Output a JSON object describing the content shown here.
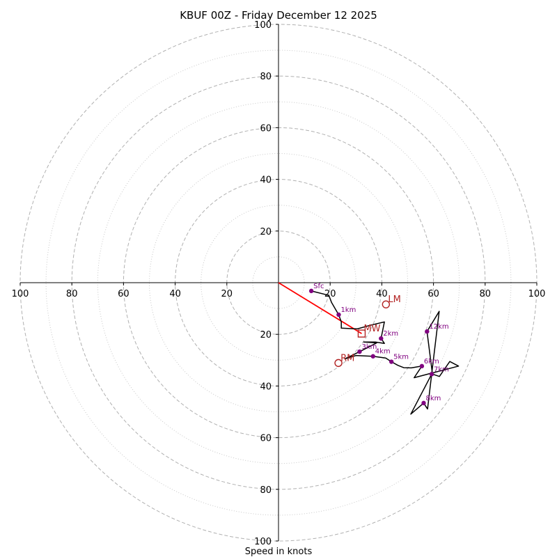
{
  "chart_data": {
    "type": "hodograph",
    "title": "KBUF 00Z - Friday December 12 2025",
    "xlabel": "Speed in knots",
    "units": "knots",
    "range": [
      -100,
      100
    ],
    "ring_major": [
      20,
      40,
      60,
      80,
      100
    ],
    "ring_minor": [
      10,
      30,
      50,
      70,
      90
    ],
    "x_tick_labels": [
      "100",
      "80",
      "60",
      "40",
      "20",
      "20",
      "40",
      "60",
      "80",
      "100"
    ],
    "x_tick_values": [
      -100,
      -80,
      -60,
      -40,
      -20,
      20,
      40,
      60,
      80,
      100
    ],
    "y_tick_labels": [
      "100",
      "80",
      "60",
      "40",
      "20",
      "20",
      "40",
      "60",
      "80",
      "100"
    ],
    "y_tick_values": [
      100,
      80,
      60,
      40,
      20,
      -20,
      -40,
      -60,
      -80,
      -100
    ],
    "grid": true,
    "trace": [
      [
        12.7,
        -3.2
      ],
      [
        19.5,
        -4.9
      ],
      [
        20.5,
        -7.6
      ],
      [
        23.3,
        -12.4
      ],
      [
        24.3,
        -15.2
      ],
      [
        24.3,
        -17.6
      ],
      [
        30.5,
        -17.9
      ],
      [
        35.5,
        -16.5
      ],
      [
        41.0,
        -15.2
      ],
      [
        39.7,
        -21.6
      ],
      [
        41.0,
        -23.5
      ],
      [
        37.5,
        -23.0
      ],
      [
        33.0,
        -23.0
      ],
      [
        38.0,
        -23.3
      ],
      [
        31.4,
        -26.7
      ],
      [
        25.7,
        -29.5
      ],
      [
        30.0,
        -28.2
      ],
      [
        36.6,
        -28.5
      ],
      [
        41.5,
        -29.2
      ],
      [
        43.7,
        -30.6
      ],
      [
        46.2,
        -32.0
      ],
      [
        48.5,
        -32.9
      ],
      [
        51.4,
        -33.0
      ],
      [
        55.5,
        -32.3
      ],
      [
        52.5,
        -36.8
      ],
      [
        59.3,
        -35.0
      ],
      [
        69.7,
        -32.3
      ],
      [
        66.3,
        -30.5
      ],
      [
        62.3,
        -36.3
      ],
      [
        59.6,
        -35.4
      ],
      [
        57.5,
        -18.9
      ],
      [
        62.2,
        -11.1
      ],
      [
        59.3,
        -35.4
      ],
      [
        57.7,
        -48.9
      ],
      [
        56.2,
        -46.6
      ],
      [
        51.2,
        -50.9
      ],
      [
        59.3,
        -35.4
      ]
    ],
    "height_markers": [
      {
        "label": "Sfc",
        "u": 12.7,
        "v": -3.2
      },
      {
        "label": "1km",
        "u": 23.3,
        "v": -12.4
      },
      {
        "label": "2km",
        "u": 39.7,
        "v": -21.6
      },
      {
        "label": "3km",
        "u": 31.4,
        "v": -26.7
      },
      {
        "label": "4km",
        "u": 36.6,
        "v": -28.5
      },
      {
        "label": "5km",
        "u": 43.7,
        "v": -30.6
      },
      {
        "label": "6km",
        "u": 55.5,
        "v": -32.3
      },
      {
        "label": "7km",
        "u": 59.3,
        "v": -35.4
      },
      {
        "label": "8km",
        "u": 56.2,
        "v": -46.6
      },
      {
        "label": "12km",
        "u": 57.5,
        "v": -18.9
      }
    ],
    "storm_motion": [
      {
        "label": "LM",
        "u": 41.6,
        "v": -8.4,
        "marker": "circle"
      },
      {
        "label": "MW",
        "u": 32.2,
        "v": -19.7,
        "marker": "square"
      },
      {
        "label": "RM",
        "u": 23.2,
        "v": -31.1,
        "marker": "circle"
      }
    ],
    "shear_vector": {
      "from": [
        0,
        0
      ],
      "to": [
        32.2,
        -19.7
      ]
    },
    "colors": {
      "trace": "#000000",
      "height_marker": "#800080",
      "storm_motion": "#b22222",
      "shear_vector": "#ff0000",
      "grid": "#b0b0b0"
    }
  }
}
